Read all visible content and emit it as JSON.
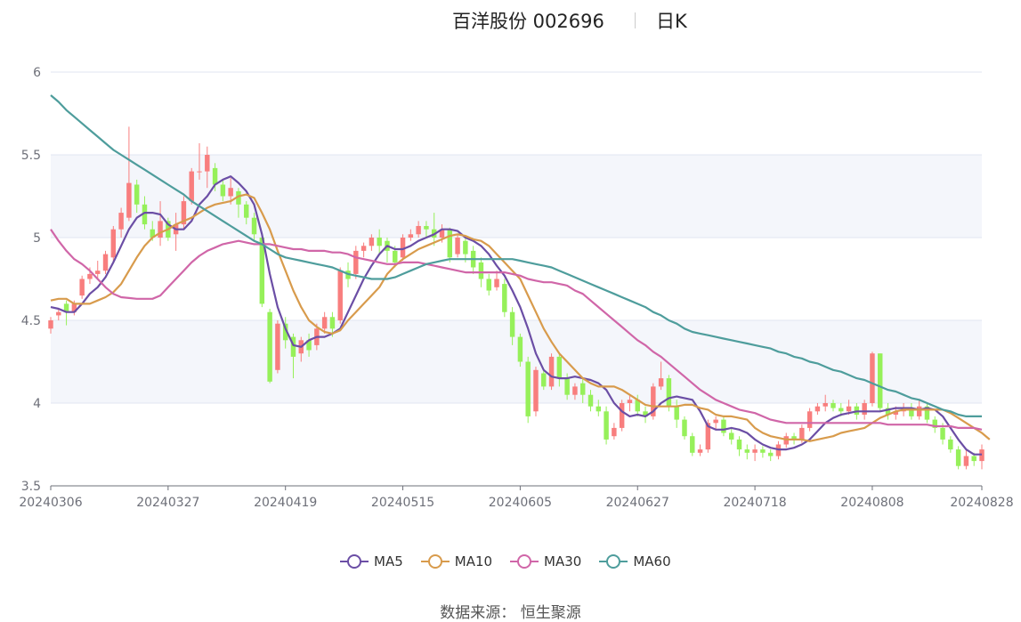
{
  "title": {
    "name": "百洋股份 002696",
    "period": "日K"
  },
  "source": "数据来源：  恒生聚源",
  "colors": {
    "up": "#f87e7e",
    "down": "#96f05a",
    "grid": "#e0e6f1",
    "band": "#f4f6fb",
    "axis": "#6e7079"
  },
  "chart_data": {
    "type": "candlestick",
    "y_ticks": [
      "3.5",
      "4",
      "4.5",
      "5",
      "5.5",
      "6"
    ],
    "ylim": [
      3.5,
      6
    ],
    "x_ticks": [
      {
        "label": "20240306",
        "index": 0
      },
      {
        "label": "20240327",
        "index": 15
      },
      {
        "label": "20240419",
        "index": 30
      },
      {
        "label": "20240515",
        "index": 45
      },
      {
        "label": "20240605",
        "index": 60
      },
      {
        "label": "20240627",
        "index": 75
      },
      {
        "label": "20240718",
        "index": 90
      },
      {
        "label": "20240808",
        "index": 105
      },
      {
        "label": "20240828",
        "index": 119
      }
    ],
    "candles": [
      [
        4.45,
        4.5,
        4.42,
        4.52
      ],
      [
        4.53,
        4.55,
        4.5,
        4.57
      ],
      [
        4.6,
        4.55,
        4.47,
        4.62
      ],
      [
        4.55,
        4.6,
        4.53,
        4.62
      ],
      [
        4.65,
        4.75,
        4.63,
        4.77
      ],
      [
        4.75,
        4.78,
        4.72,
        4.82
      ],
      [
        4.78,
        4.8,
        4.75,
        4.86
      ],
      [
        4.8,
        4.9,
        4.78,
        4.92
      ],
      [
        4.88,
        5.05,
        4.85,
        5.07
      ],
      [
        5.05,
        5.15,
        5.0,
        5.18
      ],
      [
        5.12,
        5.33,
        5.1,
        5.67
      ],
      [
        5.32,
        5.2,
        5.15,
        5.35
      ],
      [
        5.2,
        5.08,
        5.05,
        5.25
      ],
      [
        5.05,
        5.0,
        4.98,
        5.1
      ],
      [
        5.0,
        5.1,
        4.95,
        5.22
      ],
      [
        5.1,
        5.0,
        4.98,
        5.12
      ],
      [
        5.02,
        5.08,
        4.92,
        5.15
      ],
      [
        5.08,
        5.22,
        5.05,
        5.25
      ],
      [
        5.22,
        5.4,
        5.2,
        5.42
      ],
      [
        5.4,
        5.4,
        5.35,
        5.57
      ],
      [
        5.4,
        5.5,
        5.3,
        5.55
      ],
      [
        5.42,
        5.32,
        5.28,
        5.45
      ],
      [
        5.32,
        5.25,
        5.22,
        5.35
      ],
      [
        5.25,
        5.3,
        5.2,
        5.36
      ],
      [
        5.28,
        5.2,
        5.12,
        5.3
      ],
      [
        5.2,
        5.12,
        5.08,
        5.22
      ],
      [
        5.12,
        5.02,
        4.98,
        5.15
      ],
      [
        5.0,
        4.6,
        4.58,
        5.02
      ],
      [
        4.55,
        4.13,
        4.12,
        4.57
      ],
      [
        4.2,
        4.48,
        4.18,
        4.5
      ],
      [
        4.48,
        4.38,
        4.33,
        4.52
      ],
      [
        4.4,
        4.28,
        4.15,
        4.42
      ],
      [
        4.3,
        4.38,
        4.25,
        4.4
      ],
      [
        4.38,
        4.32,
        4.28,
        4.42
      ],
      [
        4.35,
        4.45,
        4.32,
        4.48
      ],
      [
        4.45,
        4.52,
        4.42,
        4.55
      ],
      [
        4.52,
        4.45,
        4.4,
        4.55
      ],
      [
        4.5,
        4.8,
        4.48,
        4.82
      ],
      [
        4.8,
        4.75,
        4.7,
        4.85
      ],
      [
        4.78,
        4.92,
        4.75,
        4.95
      ],
      [
        4.92,
        4.95,
        4.88,
        4.97
      ],
      [
        4.95,
        5.0,
        4.92,
        5.02
      ],
      [
        5.0,
        4.95,
        4.9,
        5.05
      ],
      [
        4.98,
        4.92,
        4.85,
        5.0
      ],
      [
        4.92,
        4.85,
        4.82,
        4.95
      ],
      [
        4.88,
        5.0,
        4.86,
        5.02
      ],
      [
        5.0,
        5.02,
        4.98,
        5.05
      ],
      [
        5.02,
        5.07,
        5.0,
        5.1
      ],
      [
        5.07,
        5.05,
        5.0,
        5.1
      ],
      [
        5.05,
        5.0,
        4.95,
        5.15
      ],
      [
        5.0,
        5.05,
        4.97,
        5.08
      ],
      [
        5.05,
        4.88,
        4.85,
        5.06
      ],
      [
        4.9,
        5.0,
        4.88,
        5.02
      ],
      [
        4.98,
        4.9,
        4.85,
        5.0
      ],
      [
        4.92,
        4.82,
        4.78,
        4.95
      ],
      [
        4.85,
        4.75,
        4.7,
        4.88
      ],
      [
        4.75,
        4.68,
        4.65,
        4.78
      ],
      [
        4.7,
        4.75,
        4.68,
        4.8
      ],
      [
        4.72,
        4.55,
        4.52,
        4.75
      ],
      [
        4.55,
        4.4,
        4.35,
        4.58
      ],
      [
        4.4,
        4.25,
        4.22,
        4.42
      ],
      [
        4.25,
        3.92,
        3.88,
        4.28
      ],
      [
        3.95,
        4.2,
        3.92,
        4.22
      ],
      [
        4.18,
        4.1,
        4.08,
        4.2
      ],
      [
        4.1,
        4.28,
        4.08,
        4.3
      ],
      [
        4.28,
        4.15,
        4.1,
        4.3
      ],
      [
        4.15,
        4.05,
        4.02,
        4.18
      ],
      [
        4.05,
        4.1,
        4.02,
        4.12
      ],
      [
        4.12,
        4.05,
        4.0,
        4.15
      ],
      [
        4.05,
        3.98,
        3.95,
        4.08
      ],
      [
        3.98,
        3.95,
        3.92,
        4.02
      ],
      [
        3.95,
        3.78,
        3.75,
        3.98
      ],
      [
        3.8,
        3.85,
        3.78,
        3.88
      ],
      [
        3.85,
        4.0,
        3.83,
        4.02
      ],
      [
        4.0,
        4.02,
        3.95,
        4.05
      ],
      [
        4.02,
        3.95,
        3.92,
        4.05
      ],
      [
        3.95,
        3.92,
        3.88,
        3.98
      ],
      [
        3.92,
        4.1,
        3.9,
        4.12
      ],
      [
        4.1,
        4.15,
        4.08,
        4.25
      ],
      [
        4.15,
        3.98,
        3.95,
        4.17
      ],
      [
        3.98,
        3.9,
        3.85,
        4.02
      ],
      [
        3.9,
        3.8,
        3.78,
        3.92
      ],
      [
        3.8,
        3.7,
        3.68,
        3.82
      ],
      [
        3.7,
        3.72,
        3.68,
        3.75
      ],
      [
        3.72,
        3.88,
        3.7,
        3.9
      ],
      [
        3.88,
        3.9,
        3.84,
        3.92
      ],
      [
        3.9,
        3.82,
        3.8,
        3.92
      ],
      [
        3.82,
        3.78,
        3.75,
        3.85
      ],
      [
        3.78,
        3.72,
        3.68,
        3.8
      ],
      [
        3.72,
        3.7,
        3.66,
        3.75
      ],
      [
        3.7,
        3.72,
        3.65,
        3.75
      ],
      [
        3.72,
        3.7,
        3.67,
        3.74
      ],
      [
        3.7,
        3.68,
        3.65,
        3.72
      ],
      [
        3.68,
        3.75,
        3.66,
        3.77
      ],
      [
        3.75,
        3.8,
        3.73,
        3.82
      ],
      [
        3.8,
        3.78,
        3.75,
        3.82
      ],
      [
        3.78,
        3.85,
        3.76,
        3.87
      ],
      [
        3.85,
        3.95,
        3.83,
        3.97
      ],
      [
        3.95,
        3.98,
        3.93,
        4.0
      ],
      [
        3.98,
        4.0,
        3.95,
        4.05
      ],
      [
        4.0,
        3.97,
        3.95,
        4.02
      ],
      [
        3.97,
        3.95,
        3.92,
        4.0
      ],
      [
        3.95,
        3.98,
        3.93,
        4.02
      ],
      [
        3.98,
        3.93,
        3.9,
        4.0
      ],
      [
        3.93,
        4.0,
        3.9,
        4.02
      ],
      [
        4.0,
        4.3,
        3.98,
        4.31
      ],
      [
        4.3,
        3.97,
        3.95,
        4.3
      ],
      [
        3.97,
        3.93,
        3.9,
        4.0
      ],
      [
        3.93,
        3.95,
        3.9,
        3.98
      ],
      [
        3.95,
        3.97,
        3.92,
        4.0
      ],
      [
        3.97,
        3.92,
        3.9,
        4.0
      ],
      [
        3.92,
        3.98,
        3.9,
        4.02
      ],
      [
        3.98,
        3.9,
        3.88,
        4.0
      ],
      [
        3.9,
        3.85,
        3.82,
        3.92
      ],
      [
        3.85,
        3.78,
        3.75,
        3.88
      ],
      [
        3.78,
        3.72,
        3.7,
        3.8
      ],
      [
        3.72,
        3.62,
        3.6,
        3.74
      ],
      [
        3.62,
        3.68,
        3.6,
        3.72
      ],
      [
        3.68,
        3.65,
        3.62,
        3.7
      ],
      [
        3.65,
        3.72,
        3.6,
        3.75
      ]
    ],
    "series": [
      {
        "name": "MA5",
        "color": "#6b4ea5",
        "values": [
          4.58,
          4.57,
          4.55,
          4.55,
          4.6,
          4.66,
          4.7,
          4.76,
          4.85,
          4.95,
          5.05,
          5.12,
          5.15,
          5.15,
          5.14,
          5.08,
          5.05,
          5.05,
          5.1,
          5.2,
          5.25,
          5.32,
          5.35,
          5.37,
          5.33,
          5.28,
          5.2,
          5.02,
          4.78,
          4.58,
          4.45,
          4.35,
          4.34,
          4.38,
          4.4,
          4.4,
          4.42,
          4.45,
          4.55,
          4.65,
          4.75,
          4.83,
          4.9,
          4.95,
          4.93,
          4.93,
          4.95,
          4.98,
          5.0,
          5.02,
          5.05,
          5.05,
          5.04,
          5.0,
          4.98,
          4.95,
          4.9,
          4.83,
          4.77,
          4.68,
          4.58,
          4.45,
          4.3,
          4.2,
          4.16,
          4.15,
          4.15,
          4.16,
          4.15,
          4.14,
          4.12,
          4.08,
          4.0,
          3.95,
          3.92,
          3.93,
          3.92,
          3.95,
          4.0,
          4.03,
          4.04,
          4.03,
          4.02,
          3.95,
          3.86,
          3.84,
          3.84,
          3.85,
          3.84,
          3.82,
          3.78,
          3.75,
          3.73,
          3.72,
          3.72,
          3.73,
          3.75,
          3.78,
          3.83,
          3.88,
          3.91,
          3.93,
          3.94,
          3.95,
          3.95,
          3.95,
          3.95,
          3.96,
          3.97,
          3.97,
          3.97,
          3.96,
          3.97,
          3.96,
          3.92,
          3.85,
          3.78,
          3.72,
          3.69,
          3.69
        ]
      },
      {
        "name": "MA10",
        "color": "#d89b4c",
        "values": [
          4.62,
          4.63,
          4.63,
          4.6,
          4.6,
          4.6,
          4.62,
          4.64,
          4.67,
          4.72,
          4.8,
          4.88,
          4.95,
          5.0,
          5.03,
          5.05,
          5.08,
          5.1,
          5.12,
          5.15,
          5.18,
          5.2,
          5.21,
          5.22,
          5.25,
          5.26,
          5.24,
          5.15,
          5.05,
          4.92,
          4.8,
          4.68,
          4.58,
          4.5,
          4.46,
          4.43,
          4.42,
          4.44,
          4.5,
          4.55,
          4.6,
          4.65,
          4.7,
          4.78,
          4.83,
          4.87,
          4.9,
          4.93,
          4.95,
          4.97,
          4.99,
          5.01,
          5.02,
          5.01,
          4.99,
          4.98,
          4.95,
          4.9,
          4.85,
          4.8,
          4.75,
          4.65,
          4.55,
          4.45,
          4.37,
          4.3,
          4.25,
          4.2,
          4.15,
          4.12,
          4.1,
          4.1,
          4.1,
          4.08,
          4.05,
          4.02,
          3.99,
          3.98,
          3.98,
          3.98,
          3.98,
          3.99,
          3.99,
          3.97,
          3.96,
          3.93,
          3.92,
          3.92,
          3.91,
          3.9,
          3.85,
          3.82,
          3.8,
          3.79,
          3.78,
          3.78,
          3.78,
          3.77,
          3.78,
          3.79,
          3.8,
          3.82,
          3.83,
          3.84,
          3.85,
          3.88,
          3.91,
          3.93,
          3.95,
          3.96,
          3.96,
          3.96,
          3.96,
          3.96,
          3.96,
          3.94,
          3.91,
          3.88,
          3.85,
          3.82,
          3.78
        ]
      },
      {
        "name": "MA30",
        "color": "#d066a8",
        "values": [
          5.05,
          4.98,
          4.92,
          4.87,
          4.84,
          4.8,
          4.75,
          4.7,
          4.66,
          4.64,
          4.635,
          4.63,
          4.63,
          4.63,
          4.65,
          4.7,
          4.75,
          4.8,
          4.85,
          4.89,
          4.92,
          4.94,
          4.96,
          4.97,
          4.98,
          4.97,
          4.96,
          4.96,
          4.96,
          4.95,
          4.94,
          4.93,
          4.93,
          4.92,
          4.92,
          4.92,
          4.91,
          4.91,
          4.9,
          4.88,
          4.87,
          4.86,
          4.85,
          4.84,
          4.84,
          4.85,
          4.85,
          4.85,
          4.84,
          4.83,
          4.82,
          4.81,
          4.8,
          4.79,
          4.79,
          4.79,
          4.79,
          4.79,
          4.79,
          4.78,
          4.77,
          4.75,
          4.74,
          4.73,
          4.73,
          4.72,
          4.71,
          4.68,
          4.66,
          4.62,
          4.58,
          4.54,
          4.5,
          4.46,
          4.42,
          4.38,
          4.35,
          4.31,
          4.28,
          4.24,
          4.2,
          4.16,
          4.12,
          4.08,
          4.05,
          4.02,
          4.0,
          3.98,
          3.96,
          3.95,
          3.94,
          3.92,
          3.9,
          3.89,
          3.88,
          3.88,
          3.88,
          3.88,
          3.88,
          3.88,
          3.88,
          3.88,
          3.88,
          3.88,
          3.88,
          3.88,
          3.88,
          3.87,
          3.87,
          3.87,
          3.87,
          3.87,
          3.87,
          3.86,
          3.86,
          3.86,
          3.85,
          3.85,
          3.85,
          3.84
        ]
      },
      {
        "name": "MA60",
        "color": "#4e9d9c",
        "values": [
          5.86,
          5.82,
          5.77,
          5.73,
          5.69,
          5.65,
          5.61,
          5.57,
          5.53,
          5.5,
          5.47,
          5.44,
          5.41,
          5.38,
          5.35,
          5.32,
          5.29,
          5.26,
          5.22,
          5.19,
          5.16,
          5.13,
          5.1,
          5.07,
          5.04,
          5.01,
          4.98,
          4.96,
          4.93,
          4.9,
          4.88,
          4.87,
          4.86,
          4.85,
          4.84,
          4.83,
          4.82,
          4.8,
          4.78,
          4.77,
          4.76,
          4.75,
          4.75,
          4.75,
          4.76,
          4.78,
          4.8,
          4.82,
          4.84,
          4.85,
          4.86,
          4.87,
          4.87,
          4.87,
          4.87,
          4.87,
          4.87,
          4.87,
          4.87,
          4.87,
          4.86,
          4.85,
          4.84,
          4.83,
          4.82,
          4.8,
          4.78,
          4.76,
          4.74,
          4.72,
          4.7,
          4.68,
          4.66,
          4.64,
          4.62,
          4.6,
          4.58,
          4.55,
          4.53,
          4.5,
          4.48,
          4.45,
          4.43,
          4.42,
          4.41,
          4.4,
          4.39,
          4.38,
          4.37,
          4.36,
          4.35,
          4.34,
          4.33,
          4.31,
          4.3,
          4.28,
          4.27,
          4.25,
          4.24,
          4.22,
          4.2,
          4.19,
          4.17,
          4.15,
          4.14,
          4.12,
          4.1,
          4.08,
          4.07,
          4.05,
          4.03,
          4.02,
          4.0,
          3.98,
          3.96,
          3.95,
          3.93,
          3.92,
          3.92,
          3.92
        ]
      }
    ]
  }
}
